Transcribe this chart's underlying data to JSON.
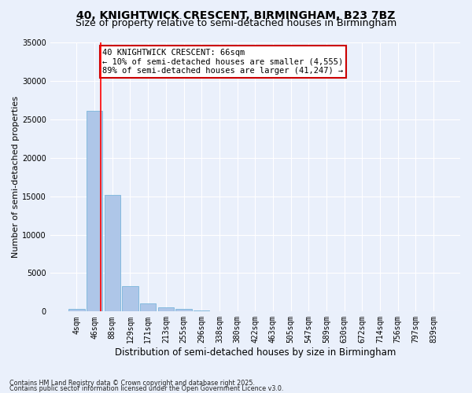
{
  "title": "40, KNIGHTWICK CRESCENT, BIRMINGHAM, B23 7BZ",
  "subtitle": "Size of property relative to semi-detached houses in Birmingham",
  "xlabel": "Distribution of semi-detached houses by size in Birmingham",
  "ylabel": "Number of semi-detached properties",
  "categories": [
    "4sqm",
    "46sqm",
    "88sqm",
    "129sqm",
    "171sqm",
    "213sqm",
    "255sqm",
    "296sqm",
    "338sqm",
    "380sqm",
    "422sqm",
    "463sqm",
    "505sqm",
    "547sqm",
    "589sqm",
    "630sqm",
    "672sqm",
    "714sqm",
    "756sqm",
    "797sqm",
    "839sqm"
  ],
  "values": [
    390,
    26100,
    15200,
    3300,
    1100,
    500,
    300,
    120,
    40,
    15,
    8,
    4,
    2,
    1,
    1,
    0,
    0,
    0,
    0,
    0,
    0
  ],
  "bar_color": "#aec6e8",
  "bar_edge_color": "#6aaed6",
  "background_color": "#eaf0fb",
  "grid_color": "#ffffff",
  "red_line_x": 1.35,
  "annotation_title": "40 KNIGHTWICK CRESCENT: 66sqm",
  "annotation_line1": "← 10% of semi-detached houses are smaller (4,555)",
  "annotation_line2": "89% of semi-detached houses are larger (41,247) →",
  "annotation_box_color": "#cc0000",
  "ylim": [
    0,
    35000
  ],
  "yticks": [
    0,
    5000,
    10000,
    15000,
    20000,
    25000,
    30000,
    35000
  ],
  "footnote1": "Contains HM Land Registry data © Crown copyright and database right 2025.",
  "footnote2": "Contains public sector information licensed under the Open Government Licence v3.0.",
  "title_fontsize": 10,
  "subtitle_fontsize": 9,
  "tick_fontsize": 7,
  "ylabel_fontsize": 8,
  "xlabel_fontsize": 8.5,
  "annot_fontsize": 7.5
}
